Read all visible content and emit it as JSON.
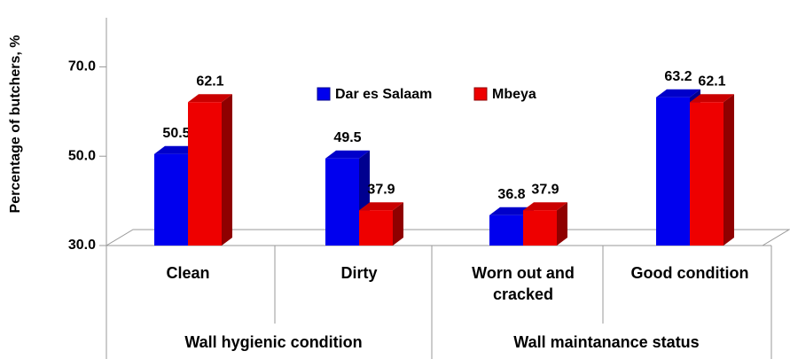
{
  "chart_data": {
    "type": "bar3d",
    "ylabel": "Percentage of butchers, %",
    "categories": [
      "Clean",
      "Dirty",
      "Worn out and cracked",
      "Good condition"
    ],
    "groups": [
      {
        "label": "Wall hygienic condition",
        "span": [
          0,
          1
        ]
      },
      {
        "label": "Wall maintanance status",
        "span": [
          2,
          3
        ]
      }
    ],
    "series": [
      {
        "name": "Dar es Salaam",
        "color": "#0000ee",
        "values": [
          50.5,
          49.5,
          36.8,
          63.2
        ]
      },
      {
        "name": "Mbeya",
        "color": "#ee0000",
        "values": [
          62.1,
          37.9,
          37.9,
          62.1
        ]
      }
    ],
    "ylim": [
      30,
      81
    ],
    "yticks": [
      {
        "value": 30,
        "label": "30.0"
      },
      {
        "value": 50,
        "label": "50.0"
      },
      {
        "value": 70,
        "label": "70.0"
      }
    ]
  }
}
